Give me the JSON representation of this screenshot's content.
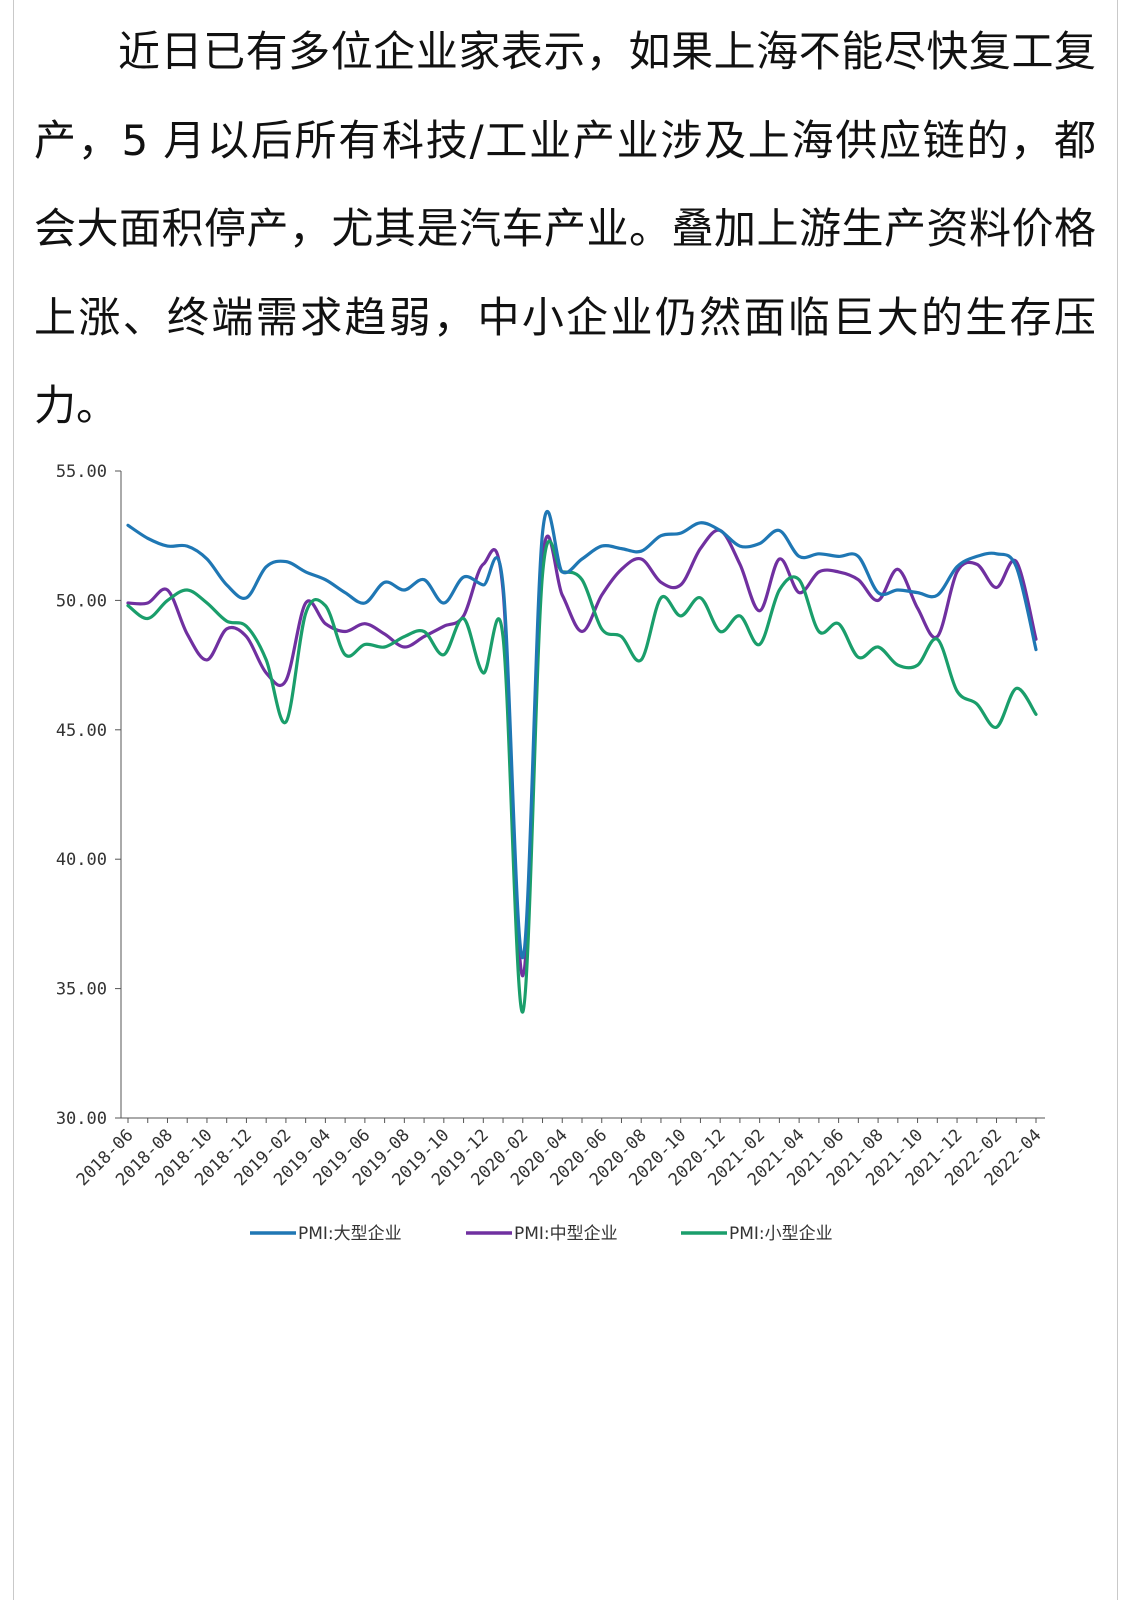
{
  "article": {
    "paragraph": "近日已有多位企业家表示，如果上海不能尽快复工复产，5 月以后所有科技/工业产业涉及上海供应链的，都会大面积停产，尤其是汽车产业。叠加上游生产资料价格上涨、终端需求趋弱，中小企业仍然面临巨大的生存压力。"
  },
  "chart_data": {
    "type": "line",
    "title": "",
    "xlabel": "",
    "ylabel": "",
    "ylim": [
      30,
      55
    ],
    "y_ticks": [
      "30.00",
      "35.00",
      "40.00",
      "45.00",
      "50.00",
      "55.00"
    ],
    "x_tick_labels": [
      "2018-06",
      "2018-08",
      "2018-10",
      "2018-12",
      "2019-02",
      "2019-04",
      "2019-06",
      "2019-08",
      "2019-10",
      "2019-12",
      "2020-02",
      "2020-04",
      "2020-06",
      "2020-08",
      "2020-10",
      "2020-12",
      "2021-02",
      "2021-04",
      "2021-06",
      "2021-08",
      "2021-10",
      "2021-12",
      "2022-02",
      "2022-04"
    ],
    "x": [
      "2018-06",
      "2018-07",
      "2018-08",
      "2018-09",
      "2018-10",
      "2018-11",
      "2018-12",
      "2019-01",
      "2019-02",
      "2019-03",
      "2019-04",
      "2019-05",
      "2019-06",
      "2019-07",
      "2019-08",
      "2019-09",
      "2019-10",
      "2019-11",
      "2019-12",
      "2020-01",
      "2020-02",
      "2020-03",
      "2020-04",
      "2020-05",
      "2020-06",
      "2020-07",
      "2020-08",
      "2020-09",
      "2020-10",
      "2020-11",
      "2020-12",
      "2021-01",
      "2021-02",
      "2021-03",
      "2021-04",
      "2021-05",
      "2021-06",
      "2021-07",
      "2021-08",
      "2021-09",
      "2021-10",
      "2021-11",
      "2021-12",
      "2022-01",
      "2022-02",
      "2022-03",
      "2022-04"
    ],
    "legend_position": "bottom",
    "series": [
      {
        "name": "PMI:大型企业",
        "color": "#1f77b4",
        "values": [
          52.9,
          52.4,
          52.1,
          52.1,
          51.6,
          50.6,
          50.1,
          51.3,
          51.5,
          51.1,
          50.8,
          50.3,
          49.9,
          50.7,
          50.4,
          50.8,
          49.9,
          50.9,
          50.6,
          50.6,
          36.2,
          52.6,
          51.1,
          51.6,
          52.1,
          52.0,
          51.9,
          52.5,
          52.6,
          53.0,
          52.7,
          52.1,
          52.2,
          52.7,
          51.7,
          51.8,
          51.7,
          51.7,
          50.3,
          50.4,
          50.3,
          50.2,
          51.3,
          51.7,
          51.8,
          51.3,
          48.1
        ]
      },
      {
        "name": "PMI:中型企业",
        "color": "#7030a0",
        "values": [
          49.9,
          49.9,
          50.4,
          48.7,
          47.7,
          48.9,
          48.6,
          47.2,
          46.9,
          49.9,
          49.1,
          48.8,
          49.1,
          48.7,
          48.2,
          48.6,
          49.0,
          49.4,
          51.4,
          50.4,
          35.5,
          51.6,
          50.2,
          48.8,
          50.2,
          51.2,
          51.6,
          50.7,
          50.6,
          52.0,
          52.7,
          51.4,
          49.6,
          51.6,
          50.3,
          51.1,
          51.1,
          50.8,
          50.0,
          51.2,
          49.7,
          48.6,
          51.1,
          51.4,
          50.5,
          51.5,
          48.5
        ]
      },
      {
        "name": "PMI:小型企业",
        "color": "#1a9e6b",
        "values": [
          49.8,
          49.3,
          50.0,
          50.4,
          49.9,
          49.2,
          49.0,
          47.7,
          45.3,
          49.5,
          49.8,
          47.9,
          48.3,
          48.2,
          48.6,
          48.8,
          47.9,
          49.3,
          47.2,
          48.6,
          34.1,
          51.0,
          51.1,
          50.8,
          48.9,
          48.6,
          47.7,
          50.1,
          49.4,
          50.1,
          48.8,
          49.4,
          48.3,
          50.4,
          50.8,
          48.8,
          49.1,
          47.8,
          48.2,
          47.5,
          47.5,
          48.5,
          46.5,
          46.0,
          45.1,
          46.6,
          45.6
        ]
      }
    ]
  }
}
